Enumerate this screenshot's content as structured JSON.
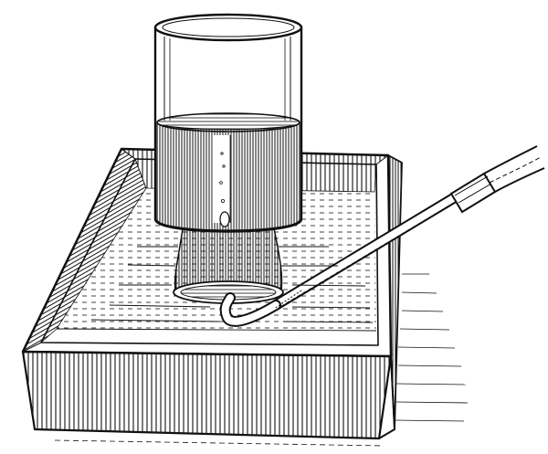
{
  "illustration": {
    "ink_color": "#111111",
    "paper_color": "#ffffff",
    "objects": [
      "pneumatic-trough",
      "inverted-gas-jar",
      "delivery-tube",
      "rubber-connector",
      "bubble"
    ]
  }
}
